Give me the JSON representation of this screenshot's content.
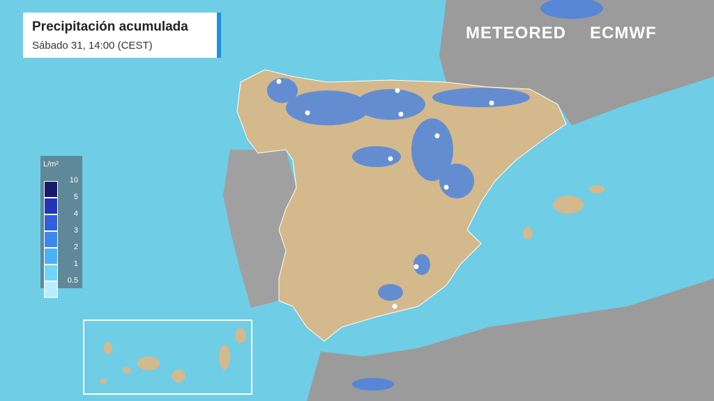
{
  "header": {
    "title": "Precipitación acumulada",
    "subtitle": "Sábado 31, 14:00 (CEST)"
  },
  "logos": [
    "METEORED",
    "ECMWF"
  ],
  "legend": {
    "unit": "L/m²",
    "items": [
      {
        "label": 10,
        "color": "#161b6e"
      },
      {
        "label": 5,
        "color": "#2434b8"
      },
      {
        "label": 4,
        "color": "#2f5fe0"
      },
      {
        "label": 3,
        "color": "#3b88ee"
      },
      {
        "label": 2,
        "color": "#4cb0f6"
      },
      {
        "label": 1,
        "color": "#6fd5fb"
      },
      {
        "label": 0.5,
        "color": "#b8edfd"
      }
    ]
  }
}
